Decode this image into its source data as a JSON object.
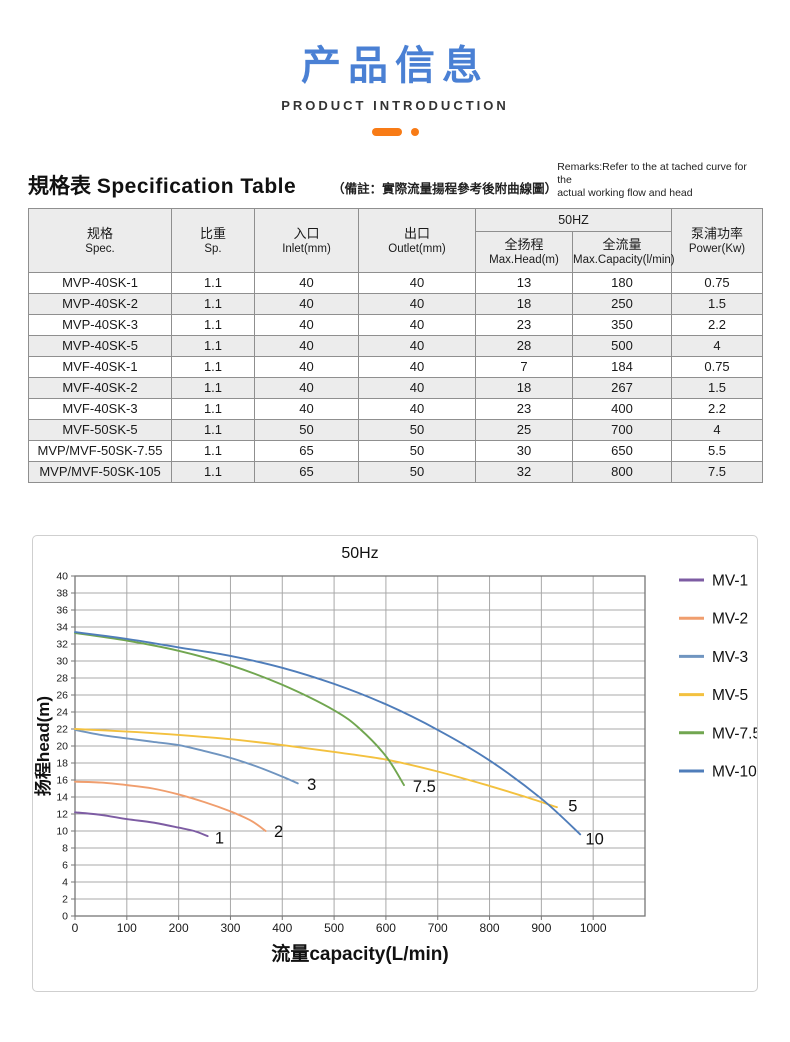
{
  "header": {
    "title": "产品信息",
    "subtitle": "PRODUCT INTRODUCTION",
    "title_color": "#4a80d4",
    "accent_color": "#f87b16"
  },
  "spec_section": {
    "heading_zh": "規格表",
    "heading_en": "Specification Table",
    "note": "（備註：實際流量揚程參考後附曲線圖）",
    "remarks_line1": "Remarks:Refer to the at tached curve for the",
    "remarks_line2": "actual working flow and head"
  },
  "spec_table": {
    "freq_header": "50HZ",
    "columns": [
      {
        "zh": "规格",
        "en": "Spec."
      },
      {
        "zh": "比重",
        "en": "Sp."
      },
      {
        "zh": "入口",
        "en": "Inlet(mm)"
      },
      {
        "zh": "出口",
        "en": "Outlet(mm)"
      },
      {
        "zh": "全扬程",
        "en": "Max.Head(m)"
      },
      {
        "zh": "全流量",
        "en": "Max.Capacity(l/min)"
      },
      {
        "zh": "泵浦功率",
        "en": "Power(Kw)"
      }
    ],
    "rows": [
      [
        "MVP-40SK-1",
        "1.1",
        "40",
        "40",
        "13",
        "180",
        "0.75"
      ],
      [
        "MVP-40SK-2",
        "1.1",
        "40",
        "40",
        "18",
        "250",
        "1.5"
      ],
      [
        "MVP-40SK-3",
        "1.1",
        "40",
        "40",
        "23",
        "350",
        "2.2"
      ],
      [
        "MVP-40SK-5",
        "1.1",
        "40",
        "40",
        "28",
        "500",
        "4"
      ],
      [
        "MVF-40SK-1",
        "1.1",
        "40",
        "40",
        "7",
        "184",
        "0.75"
      ],
      [
        "MVF-40SK-2",
        "1.1",
        "40",
        "40",
        "18",
        "267",
        "1.5"
      ],
      [
        "MVF-40SK-3",
        "1.1",
        "40",
        "40",
        "23",
        "400",
        "2.2"
      ],
      [
        "MVF-50SK-5",
        "1.1",
        "50",
        "50",
        "25",
        "700",
        "4"
      ],
      [
        "MVP/MVF-50SK-7.55",
        "1.1",
        "65",
        "50",
        "30",
        "650",
        "5.5"
      ],
      [
        "MVP/MVF-50SK-105",
        "1.1",
        "65",
        "50",
        "32",
        "800",
        "7.5"
      ]
    ]
  },
  "chart_data": {
    "type": "line",
    "title": "50Hz",
    "xlabel": "流量capacity(L/min)",
    "ylabel": "扬程head(m)",
    "xlim": [
      0,
      1100
    ],
    "ylim": [
      0,
      40
    ],
    "x_tick_step": 100,
    "x_label_max": 1000,
    "y_tick_step": 2,
    "grid": true,
    "legend_position": "right",
    "grid_color": "#a8a8a8",
    "axis_color": "#777777",
    "series": [
      {
        "name": "MV-1",
        "color": "#7d5ca3",
        "end_label": "1",
        "end_label_pos": [
          270,
          9.1
        ],
        "points": [
          [
            0,
            12.2
          ],
          [
            50,
            11.9
          ],
          [
            100,
            11.4
          ],
          [
            150,
            11.0
          ],
          [
            200,
            10.4
          ],
          [
            230,
            10.0
          ],
          [
            256,
            9.4
          ]
        ]
      },
      {
        "name": "MV-2",
        "color": "#f09e6e",
        "end_label": "2",
        "end_label_pos": [
          384,
          9.9
        ],
        "points": [
          [
            0,
            15.8
          ],
          [
            50,
            15.7
          ],
          [
            100,
            15.4
          ],
          [
            150,
            15.0
          ],
          [
            200,
            14.3
          ],
          [
            250,
            13.4
          ],
          [
            300,
            12.3
          ],
          [
            340,
            11.2
          ],
          [
            368,
            10.0
          ]
        ]
      },
      {
        "name": "MV-3",
        "color": "#7095c0",
        "end_label": "3",
        "end_label_pos": [
          448,
          15.4
        ],
        "points": [
          [
            0,
            21.9
          ],
          [
            50,
            21.3
          ],
          [
            100,
            20.9
          ],
          [
            150,
            20.5
          ],
          [
            200,
            20.1
          ],
          [
            250,
            19.4
          ],
          [
            300,
            18.6
          ],
          [
            350,
            17.6
          ],
          [
            400,
            16.4
          ],
          [
            430,
            15.6
          ]
        ]
      },
      {
        "name": "MV-5",
        "color": "#f3c13f",
        "end_label": "5",
        "end_label_pos": [
          952,
          12.9
        ],
        "points": [
          [
            0,
            22.0
          ],
          [
            100,
            21.7
          ],
          [
            200,
            21.3
          ],
          [
            300,
            20.8
          ],
          [
            400,
            20.1
          ],
          [
            500,
            19.3
          ],
          [
            600,
            18.4
          ],
          [
            700,
            17.0
          ],
          [
            800,
            15.3
          ],
          [
            870,
            14.0
          ],
          [
            930,
            12.8
          ]
        ]
      },
      {
        "name": "MV-7.5",
        "color": "#71a650",
        "end_label": "7.5",
        "end_label_pos": [
          652,
          15.2
        ],
        "points": [
          [
            0,
            33.3
          ],
          [
            100,
            32.4
          ],
          [
            200,
            31.2
          ],
          [
            300,
            29.5
          ],
          [
            400,
            27.2
          ],
          [
            500,
            24.2
          ],
          [
            550,
            22.0
          ],
          [
            600,
            18.8
          ],
          [
            635,
            15.4
          ]
        ]
      },
      {
        "name": "MV-10",
        "color": "#4f7dba",
        "end_label": "10",
        "end_label_pos": [
          985,
          9.0
        ],
        "points": [
          [
            0,
            33.4
          ],
          [
            100,
            32.6
          ],
          [
            200,
            31.6
          ],
          [
            300,
            30.6
          ],
          [
            400,
            29.2
          ],
          [
            500,
            27.3
          ],
          [
            600,
            24.9
          ],
          [
            700,
            21.9
          ],
          [
            800,
            18.3
          ],
          [
            900,
            13.8
          ],
          [
            975,
            9.6
          ]
        ]
      }
    ]
  }
}
